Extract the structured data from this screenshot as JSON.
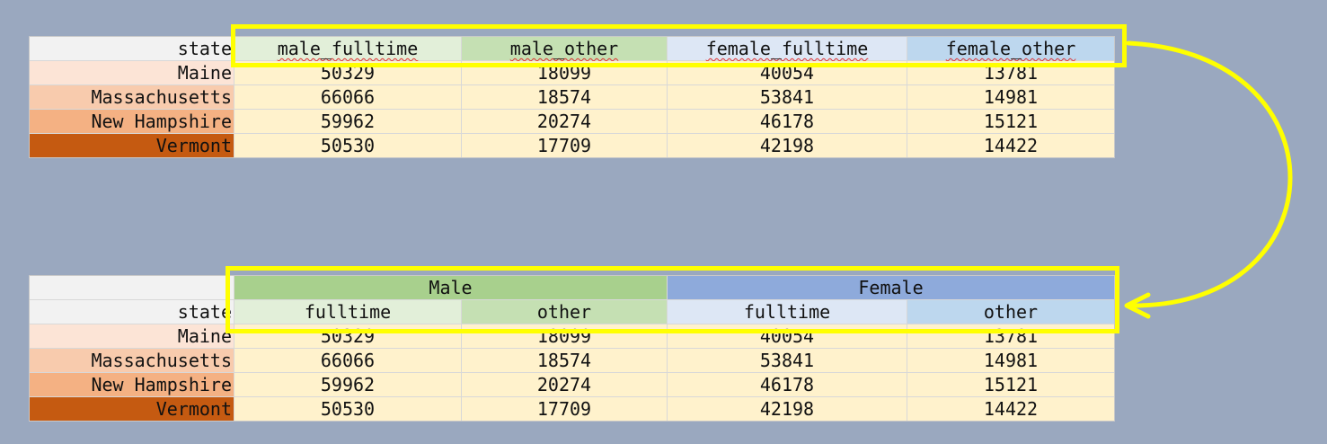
{
  "top_table": {
    "headers": [
      "state",
      "male_fulltime",
      "male_other",
      "female_fulltime",
      "female_other"
    ],
    "rows": [
      [
        "Maine",
        "50329",
        "18099",
        "40054",
        "13781"
      ],
      [
        "Massachusetts",
        "66066",
        "18574",
        "53841",
        "14981"
      ],
      [
        "New Hampshire",
        "59962",
        "20274",
        "46178",
        "15121"
      ],
      [
        "Vermont",
        "50530",
        "17709",
        "42198",
        "14422"
      ]
    ]
  },
  "bottom_table": {
    "groups": [
      "Male",
      "Female"
    ],
    "headers": [
      "state",
      "fulltime",
      "other",
      "fulltime",
      "other"
    ],
    "rows": [
      [
        "Maine",
        "50329",
        "18099",
        "40054",
        "13781"
      ],
      [
        "Massachusetts",
        "66066",
        "18574",
        "53841",
        "14981"
      ],
      [
        "New Hampshire",
        "59962",
        "20274",
        "46178",
        "15121"
      ],
      [
        "Vermont",
        "50530",
        "17709",
        "42198",
        "14422"
      ]
    ]
  },
  "colors": {
    "background": "#9aa8bf",
    "highlight": "#ffff00",
    "male_group": "#a8d08d",
    "female_group": "#8eaadb",
    "state_shades": [
      "#fce4d6",
      "#f8cbad",
      "#f4b183",
      "#c55a11"
    ]
  }
}
